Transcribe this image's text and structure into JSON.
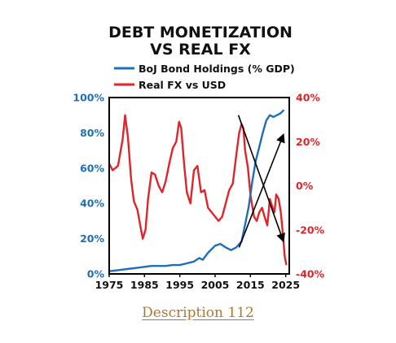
{
  "chart_data": {
    "type": "line",
    "title_lines": [
      "DEBT MONETIZATION",
      "VS REAL FX"
    ],
    "legend": [
      "BoJ Bond Holdings (% GDP)",
      "Real FX vs USD"
    ],
    "x_ticks": [
      "1975",
      "1985",
      "1995",
      "2005",
      "2015",
      "2025"
    ],
    "xlim": [
      1975,
      2026
    ],
    "y_left": {
      "ticks": [
        "0%",
        "20%",
        "40%",
        "60%",
        "80%",
        "100%"
      ],
      "lim": [
        0,
        100
      ]
    },
    "y_right": {
      "ticks": [
        "-40%",
        "-20%",
        "0%",
        "20%",
        "40%"
      ],
      "lim": [
        -40,
        40
      ]
    },
    "colors": {
      "left_series": "#1e6fb8",
      "right_series": "#e0242b",
      "arrows": "#000000"
    },
    "series": [
      {
        "name": "BoJ Bond Holdings (% GDP)",
        "axis": "left",
        "x": [
          1975,
          1977,
          1979,
          1981,
          1983,
          1985,
          1987,
          1989,
          1991,
          1993,
          1995,
          1997,
          1999,
          2000.5,
          2001.5,
          2003,
          2005,
          2006.5,
          2008,
          2009.5,
          2011,
          2012.5,
          2013.5,
          2014.5,
          2015.5,
          2016.5,
          2017.5,
          2018.5,
          2019.5,
          2020.5,
          2021.5,
          2022.5,
          2023.5,
          2024.5
        ],
        "values": [
          1.5,
          2,
          2.5,
          3,
          3.5,
          4,
          4.5,
          4.5,
          4.5,
          5,
          5,
          6,
          7,
          9,
          8,
          12,
          16,
          17,
          15,
          13.5,
          15,
          18.5,
          28,
          38,
          52,
          64,
          72,
          80,
          87,
          90,
          89,
          90,
          91,
          93
        ]
      },
      {
        "name": "Real FX vs USD",
        "axis": "right",
        "x": [
          1975,
          1976,
          1977.5,
          1978.8,
          1979.5,
          1980.3,
          1981.2,
          1982,
          1983,
          1983.8,
          1984.5,
          1985.3,
          1986,
          1987,
          1988,
          1989,
          1990,
          1991,
          1992,
          1993,
          1994,
          1994.8,
          1995.4,
          1996.2,
          1997,
          1998,
          1999,
          2000,
          2001,
          2002,
          2003,
          2004,
          2005,
          2006,
          2007,
          2008,
          2009,
          2010,
          2011,
          2011.8,
          2012.5,
          2013,
          2013.5,
          2014.3,
          2015,
          2016,
          2016.8,
          2017.5,
          2018.3,
          2019,
          2019.8,
          2020.5,
          2021.3,
          2021.8,
          2022.3,
          2023,
          2023.6,
          2024.2,
          2024.7,
          2025.2
        ],
        "values": [
          10,
          7,
          9,
          21,
          32,
          22,
          3,
          -7,
          -11,
          -18,
          -24,
          -20,
          -6,
          6,
          5,
          0,
          -3,
          2,
          10,
          17,
          20,
          29,
          26,
          10,
          -3,
          -8,
          7,
          9,
          -3,
          -2,
          -10,
          -12,
          -14,
          -16,
          -14,
          -8,
          -2,
          1,
          14,
          24,
          28,
          26,
          16,
          8,
          -4,
          -14,
          -16,
          -12,
          -10,
          -14,
          -18,
          -6,
          -10,
          -12,
          -4,
          -6,
          -12,
          -22,
          -32,
          -36
        ]
      }
    ],
    "annotations": [
      "two crossing black arrows from 2012 to 2025"
    ]
  },
  "caption": "Description 112"
}
